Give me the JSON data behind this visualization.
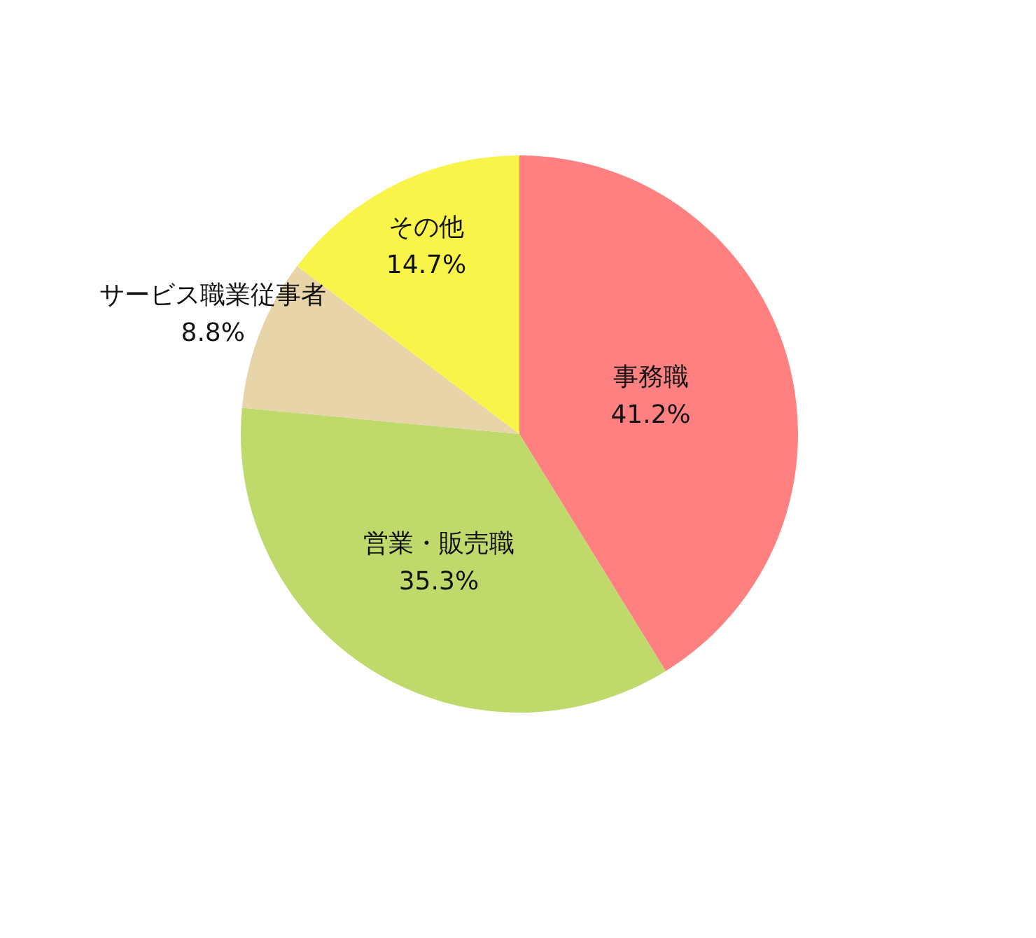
{
  "chart_data": {
    "type": "pie",
    "categories": [
      "事務職",
      "営業・販売職",
      "サービス職業従事者",
      "その他"
    ],
    "values": [
      41.2,
      35.3,
      8.8,
      14.7
    ],
    "colors": [
      "#ff8080",
      "#bfd96b",
      "#e8d4a9",
      "#f8f449"
    ],
    "value_labels": [
      "41.2%",
      "35.3%",
      "8.8%",
      "14.7%"
    ]
  }
}
